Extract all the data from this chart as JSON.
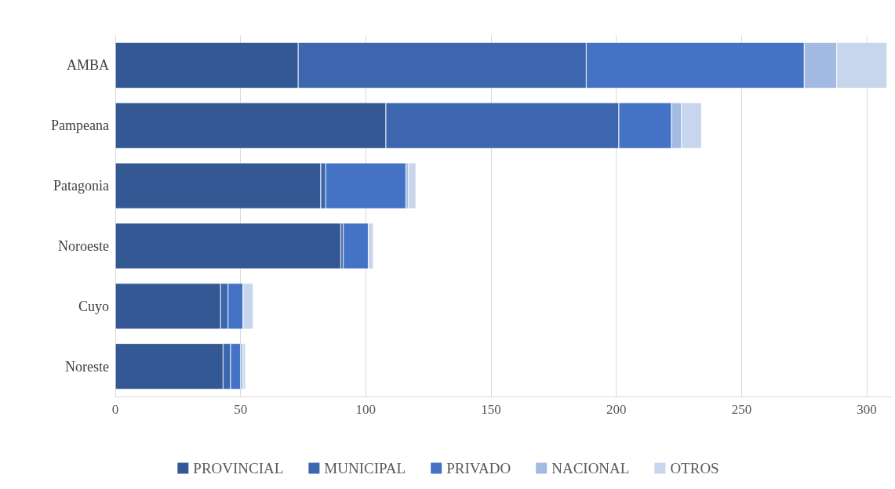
{
  "chart_data": {
    "type": "bar",
    "orientation": "horizontal",
    "stacked": true,
    "categories": [
      "AMBA",
      "Pampeana",
      "Patagonia",
      "Noroeste",
      "Cuyo",
      "Noreste"
    ],
    "series": [
      {
        "name": "PROVINCIAL",
        "color": "#335893",
        "values": [
          73,
          108,
          82,
          90,
          42,
          43
        ]
      },
      {
        "name": "MUNICIPAL",
        "color": "#3c66ae",
        "values": [
          115,
          93,
          2,
          1,
          3,
          3
        ]
      },
      {
        "name": "PRIVADO",
        "color": "#4472c4",
        "values": [
          87,
          21,
          32,
          10,
          6,
          4
        ]
      },
      {
        "name": "NACIONAL",
        "color": "#a3bbe2",
        "values": [
          13,
          4,
          1,
          0,
          0,
          1
        ]
      },
      {
        "name": "OTROS",
        "color": "#c7d5ed",
        "values": [
          20,
          8,
          3,
          2,
          4,
          1
        ]
      }
    ],
    "xlim": [
      0,
      310
    ],
    "xticks": [
      0,
      50,
      100,
      150,
      200,
      250,
      300
    ],
    "grid": "x",
    "legend": "bottom"
  }
}
